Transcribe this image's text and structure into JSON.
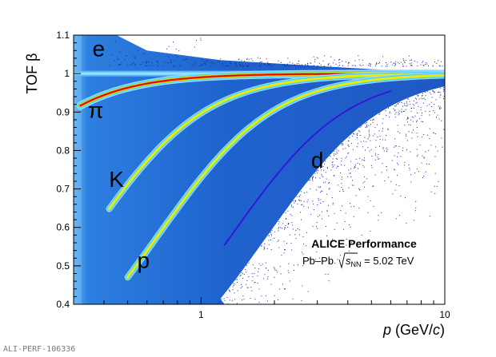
{
  "chart_data": {
    "type": "scatter",
    "title": "",
    "ylabel": "TOF β",
    "xlabel_var": "p",
    "xlabel_unit_open": " (GeV/",
    "xlabel_unit_c": "c",
    "xlabel_unit_close": ")",
    "x_scale": "log",
    "xlim": [
      0.3,
      10
    ],
    "ylim": [
      0.4,
      1.1
    ],
    "grid": false,
    "x_ticks": [
      {
        "value": 1,
        "label": "1"
      },
      {
        "value": 10,
        "label": "10"
      }
    ],
    "y_ticks": [
      {
        "value": 0.4,
        "label": "0.4"
      },
      {
        "value": 0.5,
        "label": "0.5"
      },
      {
        "value": 0.6,
        "label": "0.6"
      },
      {
        "value": 0.7,
        "label": "0.7"
      },
      {
        "value": 0.8,
        "label": "0.8"
      },
      {
        "value": 0.9,
        "label": "0.9"
      },
      {
        "value": 1.0,
        "label": "1"
      },
      {
        "value": 1.1,
        "label": "1.1"
      }
    ],
    "species": [
      {
        "label": "e",
        "mass": 0.000511,
        "label_x": 0.38,
        "label_y": 1.045
      },
      {
        "label": "π",
        "mass": 0.1396,
        "label_x": 0.37,
        "label_y": 0.885
      },
      {
        "label": "K",
        "mass": 0.4937,
        "label_x": 0.45,
        "label_y": 0.705
      },
      {
        "label": "p",
        "mass": 0.9383,
        "label_x": 0.58,
        "label_y": 0.495
      },
      {
        "label": "d",
        "mass": 1.8756,
        "label_x": 3.0,
        "label_y": 0.755
      }
    ],
    "bands": [
      {
        "mass": 0.1396,
        "p_min": 0.32,
        "p_max": 10,
        "colors": [
          "#9fd8ff",
          "#2ed1ff",
          "#9cff5a",
          "#ffd400",
          "#ff7a00",
          "#d0140e"
        ],
        "widths": [
          10,
          7,
          5,
          4,
          3,
          2
        ]
      },
      {
        "mass": 0.4937,
        "p_min": 0.42,
        "p_max": 10,
        "colors": [
          "#9fd8ff",
          "#3cc8ff",
          "#a6ff50",
          "#ffe000"
        ],
        "widths": [
          8,
          5.5,
          3.5,
          2
        ]
      },
      {
        "mass": 0.9383,
        "p_min": 0.5,
        "p_max": 10,
        "colors": [
          "#9fd8ff",
          "#3cc8ff",
          "#a6ff50",
          "#ffe000"
        ],
        "widths": [
          8,
          5.5,
          3.5,
          2
        ]
      },
      {
        "mass": 1.8756,
        "p_min": 1.25,
        "p_max": 6,
        "colors": [
          "#3a3ff0",
          "#1d1eb0"
        ],
        "widths": [
          3,
          1.4
        ]
      }
    ],
    "annotation": {
      "title": "ALICE Performance",
      "system": "Pb–Pb ",
      "energy_sub": "NN",
      "energy_var": "s",
      "energy_value": " = 5.02 TeV"
    },
    "colors": {
      "background_fill": "#1f63cf",
      "background_edge": "#6fb8f5",
      "noise": "#12249e",
      "pion_core": "#d0140e"
    }
  },
  "figure_id": "ALI-PERF-106336"
}
